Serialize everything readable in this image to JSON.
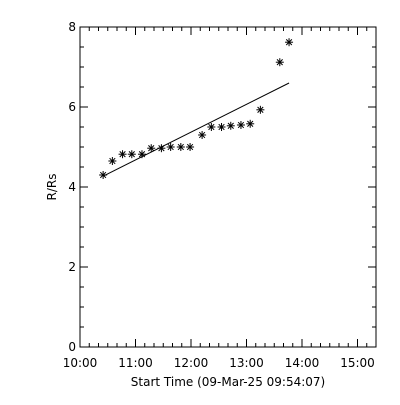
{
  "chart_data": {
    "type": "scatter",
    "title": "",
    "xlabel": "Start Time (09-Mar-25 09:54:07)",
    "ylabel": "R/Rs",
    "xlim": [
      "10:00",
      "15:20"
    ],
    "ylim": [
      0,
      8
    ],
    "x_ticks": [
      "10:00",
      "11:00",
      "12:00",
      "13:00",
      "14:00",
      "15:00"
    ],
    "y_ticks": [
      0,
      2,
      4,
      6,
      8
    ],
    "grid": false,
    "marker": "asterisk",
    "series": [
      {
        "points": [
          {
            "x": "10:25",
            "y": 4.3
          },
          {
            "x": "10:35",
            "y": 4.65
          },
          {
            "x": "10:46",
            "y": 4.82
          },
          {
            "x": "10:56",
            "y": 4.82
          },
          {
            "x": "11:07",
            "y": 4.82
          },
          {
            "x": "11:17",
            "y": 4.97
          },
          {
            "x": "11:28",
            "y": 4.97
          },
          {
            "x": "11:38",
            "y": 5.0
          },
          {
            "x": "11:49",
            "y": 5.0
          },
          {
            "x": "11:59",
            "y": 5.0
          },
          {
            "x": "12:12",
            "y": 5.3
          },
          {
            "x": "12:22",
            "y": 5.5
          },
          {
            "x": "12:33",
            "y": 5.5
          },
          {
            "x": "12:43",
            "y": 5.53
          },
          {
            "x": "12:54",
            "y": 5.55
          },
          {
            "x": "13:04",
            "y": 5.58
          },
          {
            "x": "13:15",
            "y": 5.93
          },
          {
            "x": "13:36",
            "y": 7.12
          },
          {
            "x": "13:46",
            "y": 7.62
          }
        ]
      }
    ],
    "fit_line": {
      "x": [
        "10:25",
        "13:46"
      ],
      "y": [
        4.27,
        6.6
      ]
    }
  }
}
